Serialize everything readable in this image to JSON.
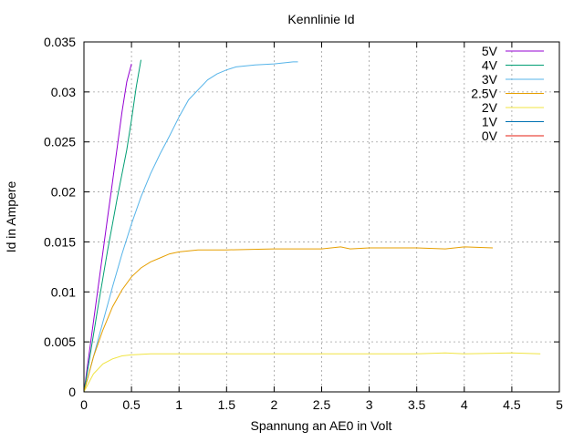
{
  "chart_data": {
    "type": "line",
    "title": "Kennlinie Id",
    "xlabel": "Spannung an AE0 in Volt",
    "ylabel": "Id in Ampere",
    "xlim": [
      0,
      5
    ],
    "ylim": [
      0,
      0.035
    ],
    "x_ticks": [
      "0",
      "0.5",
      "1",
      "1.5",
      "2",
      "2.5",
      "3",
      "3.5",
      "4",
      "4.5",
      "5"
    ],
    "y_ticks": [
      "0",
      "0.005",
      "0.01",
      "0.015",
      "0.02",
      "0.025",
      "0.03",
      "0.035"
    ],
    "grid": true,
    "legend_position": "top-right",
    "series": [
      {
        "name": "5V",
        "color": "#9400d3",
        "x": [
          0,
          0.05,
          0.1,
          0.15,
          0.2,
          0.25,
          0.3,
          0.35,
          0.4,
          0.45,
          0.5
        ],
        "y": [
          0,
          0.0035,
          0.007,
          0.0105,
          0.014,
          0.0175,
          0.021,
          0.0245,
          0.028,
          0.031,
          0.0328
        ]
      },
      {
        "name": "4V",
        "color": "#009e73",
        "x": [
          0,
          0.05,
          0.1,
          0.15,
          0.2,
          0.25,
          0.3,
          0.35,
          0.4,
          0.45,
          0.5,
          0.55,
          0.6
        ],
        "y": [
          0,
          0.0028,
          0.0057,
          0.0086,
          0.0114,
          0.0142,
          0.0168,
          0.0194,
          0.0218,
          0.0242,
          0.0272,
          0.0305,
          0.0332
        ]
      },
      {
        "name": "3V",
        "color": "#56b4e9",
        "x": [
          0,
          0.1,
          0.2,
          0.3,
          0.4,
          0.5,
          0.6,
          0.7,
          0.8,
          0.9,
          1.0,
          1.1,
          1.2,
          1.3,
          1.4,
          1.5,
          1.6,
          1.8,
          2.0,
          2.2,
          2.25
        ],
        "y": [
          0,
          0.0035,
          0.007,
          0.0105,
          0.0138,
          0.0168,
          0.0195,
          0.0218,
          0.0238,
          0.0256,
          0.0275,
          0.0292,
          0.0302,
          0.0312,
          0.0318,
          0.0322,
          0.0325,
          0.0327,
          0.0328,
          0.033,
          0.033
        ]
      },
      {
        "name": "2.5V",
        "color": "#e69f00",
        "x": [
          0,
          0.1,
          0.2,
          0.3,
          0.4,
          0.5,
          0.6,
          0.7,
          0.8,
          0.9,
          1.0,
          1.2,
          1.5,
          2.0,
          2.5,
          2.7,
          2.8,
          3.0,
          3.5,
          3.8,
          4.0,
          4.3
        ],
        "y": [
          0,
          0.0035,
          0.0062,
          0.0085,
          0.0102,
          0.0115,
          0.0124,
          0.013,
          0.0134,
          0.0138,
          0.014,
          0.0142,
          0.0142,
          0.0143,
          0.0143,
          0.0145,
          0.0143,
          0.0144,
          0.0144,
          0.0143,
          0.0145,
          0.0144
        ]
      },
      {
        "name": "2V",
        "color": "#f0e442",
        "x": [
          0,
          0.1,
          0.2,
          0.3,
          0.4,
          0.5,
          0.7,
          1.0,
          1.5,
          2.0,
          2.5,
          3.0,
          3.5,
          3.8,
          4.0,
          4.5,
          4.8
        ],
        "y": [
          0,
          0.0018,
          0.0028,
          0.0033,
          0.0036,
          0.0037,
          0.0038,
          0.0038,
          0.0038,
          0.0038,
          0.0038,
          0.0038,
          0.0038,
          0.0039,
          0.0038,
          0.0039,
          0.0038
        ]
      },
      {
        "name": "1V",
        "color": "#0072b2",
        "x": [
          0,
          0.3,
          0.8,
          1.7,
          2.5,
          3.0,
          4.0,
          4.2
        ],
        "y": [
          0,
          0,
          0,
          0,
          0,
          0,
          0,
          0
        ]
      },
      {
        "name": "0V",
        "color": "#e51e10",
        "x": [
          0.3,
          0.6,
          1.6,
          2.0,
          2.8,
          3.2,
          3.8,
          4.2,
          4.5,
          5.0
        ],
        "y": [
          0,
          0,
          0,
          0,
          0,
          0,
          0,
          0,
          0,
          0
        ]
      }
    ]
  }
}
